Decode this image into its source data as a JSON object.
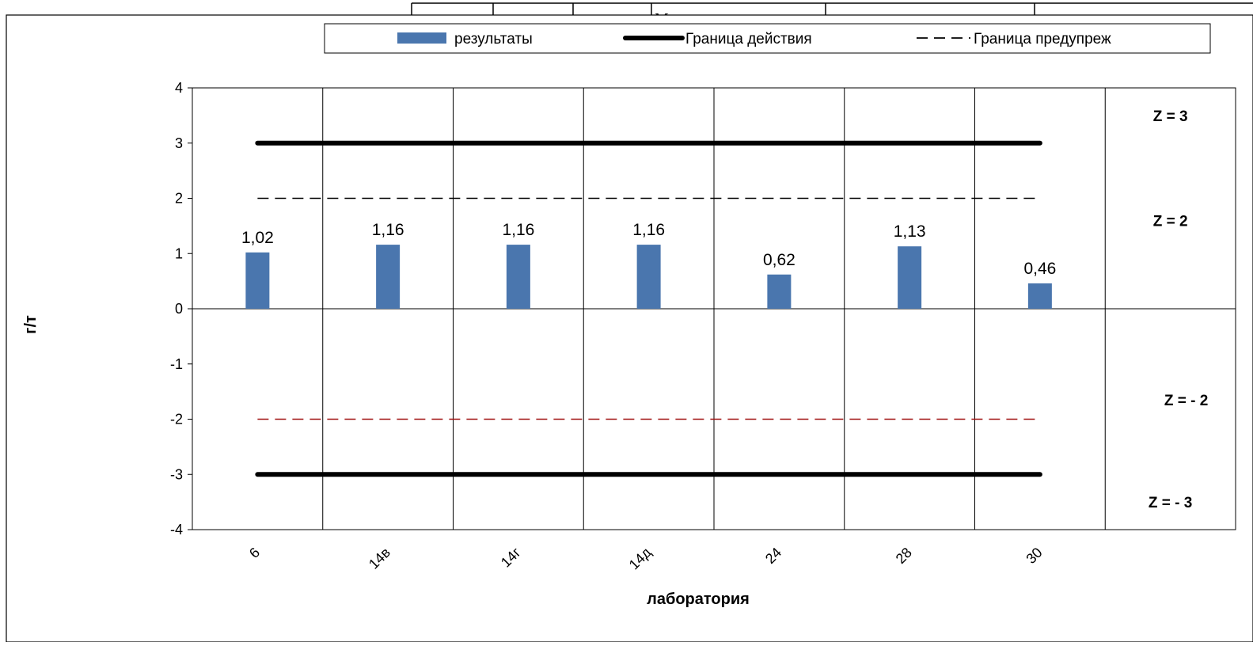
{
  "header_fragment": "Медиан",
  "legend": {
    "bar_label": "результаты",
    "action_label": "Граница действия",
    "warning_label": "Граница предупреж"
  },
  "chart_data": {
    "type": "bar",
    "categories": [
      "6",
      "14в",
      "14г",
      "14д",
      "24",
      "28",
      "30"
    ],
    "values": [
      1.02,
      1.16,
      1.16,
      1.16,
      0.62,
      1.13,
      0.46
    ],
    "data_labels": [
      "1,02",
      "1,16",
      "1,16",
      "1,16",
      "0,62",
      "1,13",
      "0,46"
    ],
    "xlabel": "лаборатория",
    "ylabel": "г/т",
    "ylim": [
      -4,
      4
    ],
    "yticks": [
      {
        "value": 4,
        "label": "4"
      },
      {
        "value": 3,
        "label": "3"
      },
      {
        "value": 2,
        "label": "2"
      },
      {
        "value": 1,
        "label": "1"
      },
      {
        "value": 0,
        "label": "0"
      },
      {
        "value": -1,
        "label": "-1"
      },
      {
        "value": -2,
        "label": "-2"
      },
      {
        "value": -3,
        "label": "-3"
      },
      {
        "value": -4,
        "label": "-4"
      }
    ],
    "action_limits": [
      3,
      -3
    ],
    "warning_limits": [
      2,
      -2
    ],
    "zone_labels": [
      "Z = 3",
      "Z = 2",
      "Z = - 2",
      "Z = - 3"
    ],
    "zone_values": [
      3.5,
      1.6,
      -1.65,
      -3.5
    ],
    "vertical_gridlines": true,
    "legend_position": "top",
    "colors": {
      "bar": "#4a76ae",
      "action": "#000000",
      "warning_upper": "#000000",
      "warning_lower": "#a01010"
    }
  }
}
